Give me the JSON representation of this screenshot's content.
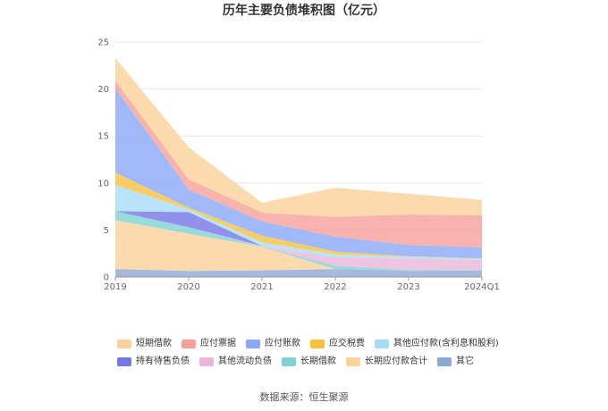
{
  "chart_data": {
    "type": "area",
    "stacked": true,
    "title": "历年主要负债堆积图（亿元）",
    "categories": [
      "2019",
      "2020",
      "2021",
      "2022",
      "2023",
      "2024Q1"
    ],
    "ylim": [
      0,
      25
    ],
    "yticks": [
      0,
      5,
      10,
      15,
      20,
      25
    ],
    "grid": true,
    "legend_position": "bottom",
    "series": [
      {
        "name": "短期借款",
        "color": "#FAD29A",
        "values": [
          2.4,
          3.4,
          1.05,
          3.1,
          2.2,
          1.65
        ]
      },
      {
        "name": "应付票据",
        "color": "#F6A09A",
        "values": [
          0.8,
          1.1,
          0.95,
          2.1,
          3.25,
          3.4
        ]
      },
      {
        "name": "应付账款",
        "color": "#8BA7F7",
        "values": [
          9.0,
          1.9,
          1.5,
          1.6,
          1.2,
          1.15
        ]
      },
      {
        "name": "应交税费",
        "color": "#F7C03F",
        "values": [
          1.3,
          0.2,
          0.7,
          0.3,
          0.05,
          0.05
        ]
      },
      {
        "name": "其他应付款(含利息和股利)",
        "color": "#A6DCF7",
        "values": [
          2.8,
          0.3,
          0.4,
          0.3,
          0.15,
          0.15
        ]
      },
      {
        "name": "持有待售负债",
        "color": "#7676E6",
        "values": [
          0,
          1.6,
          0,
          0,
          0,
          0
        ]
      },
      {
        "name": "其他流动负债",
        "color": "#E8B6DB",
        "values": [
          0,
          0,
          0.05,
          0.9,
          1.25,
          1.05
        ]
      },
      {
        "name": "长期借款",
        "color": "#7FD2D2",
        "values": [
          0.95,
          0.7,
          0.05,
          0.35,
          0.1,
          0.05
        ]
      },
      {
        "name": "长期应付款合计",
        "color": "#FAD29A",
        "values": [
          5.2,
          3.95,
          2.5,
          0,
          0,
          0
        ]
      },
      {
        "name": "其它",
        "color": "#8EA7D5",
        "values": [
          0.85,
          0.65,
          0.7,
          0.85,
          0.65,
          0.7
        ]
      }
    ]
  },
  "source": "数据来源：恒生聚源"
}
